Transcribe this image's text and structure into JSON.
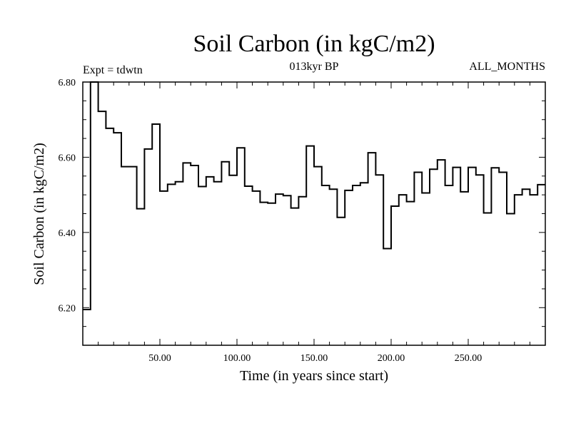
{
  "chart_data": {
    "type": "line",
    "title": "Soil Carbon (in kgC/m2)",
    "subtitle": "013kyr BP",
    "expt_label": "Expt = tdwtn",
    "season_label": "ALL_MONTHS",
    "xlabel": "Time (in years since start)",
    "ylabel": "Soil Carbon (in kgC/m2)",
    "xlim": [
      0,
      300
    ],
    "ylim": [
      6.1,
      6.8
    ],
    "x_ticks": [
      {
        "value": 50,
        "label": "50.00"
      },
      {
        "value": 100,
        "label": "100.00"
      },
      {
        "value": 150,
        "label": "150.00"
      },
      {
        "value": 200,
        "label": "200.00"
      },
      {
        "value": 250,
        "label": "250.00"
      }
    ],
    "y_ticks": [
      {
        "value": 6.2,
        "label": "6.20"
      },
      {
        "value": 6.4,
        "label": "6.40"
      },
      {
        "value": 6.6,
        "label": "6.60"
      },
      {
        "value": 6.8,
        "label": "6.80"
      }
    ],
    "x_minor_step": 10,
    "y_minor_step": 0.05,
    "step_width": 5,
    "series": [
      {
        "name": "Soil Carbon",
        "start": 0,
        "values": [
          6.195,
          6.8,
          6.722,
          6.677,
          6.665,
          6.575,
          6.575,
          6.463,
          6.622,
          6.688,
          6.51,
          6.528,
          6.535,
          6.585,
          6.578,
          6.522,
          6.548,
          6.535,
          6.588,
          6.552,
          6.625,
          6.523,
          6.51,
          6.48,
          6.478,
          6.502,
          6.498,
          6.465,
          6.495,
          6.63,
          6.575,
          6.525,
          6.515,
          6.44,
          6.512,
          6.525,
          6.532,
          6.612,
          6.553,
          6.357,
          6.47,
          6.5,
          6.482,
          6.56,
          6.505,
          6.568,
          6.593,
          6.525,
          6.573,
          6.508,
          6.573,
          6.553,
          6.452,
          6.572,
          6.56,
          6.45,
          6.5,
          6.515,
          6.5,
          6.527
        ]
      }
    ]
  }
}
